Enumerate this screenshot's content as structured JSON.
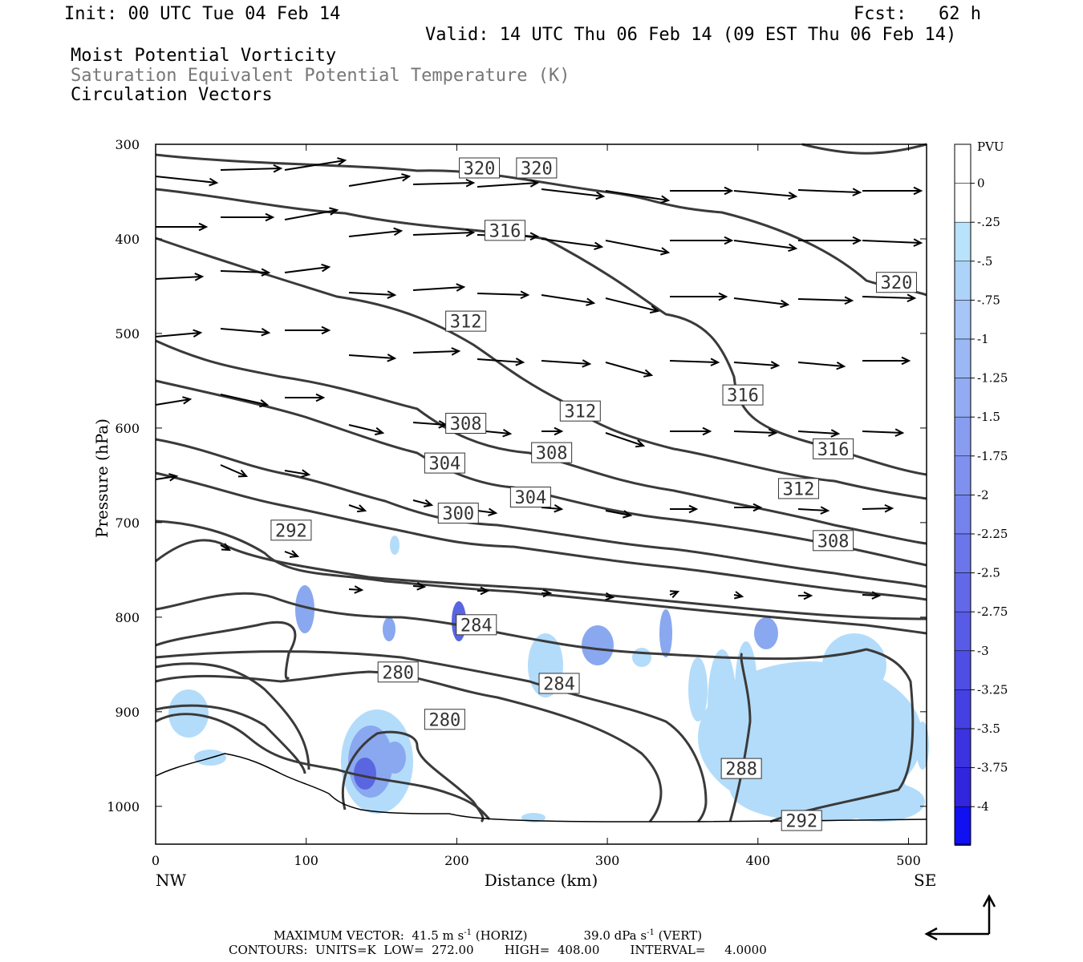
{
  "header": {
    "init": "Init: 00 UTC Tue 04 Feb 14",
    "fcst": "Fcst:   62 h",
    "valid": "Valid: 14 UTC Thu 06 Feb 14 (09 EST Thu 06 Feb 14)",
    "field1": "Moist Potential Vorticity",
    "field2": "Saturation Equivalent Potential Temperature (K)",
    "field3": "Circulation Vectors"
  },
  "footer": {
    "line1_a": "MAXIMUM VECTOR:  41.5 m s",
    "line1_a_sup": "-1",
    "line1_b": " (HORIZ)",
    "line1_c": "39.0 dPa s",
    "line1_c_sup": "-1",
    "line1_d": " (VERT)",
    "line2": "CONTOURS:  UNITS=K  LOW=  272.00        HIGH=  408.00        INTERVAL=     4.0000"
  },
  "colors": {
    "contour": "#3a3a3a",
    "frame": "#000000",
    "pv_light": "#b3dcfa",
    "pv_mid": "#8aa8f0",
    "pv_strong": "#5a66e0",
    "pv_max": "#1010f0"
  },
  "chart_data": {
    "type": "cross-section",
    "title": "",
    "xlabel": "Distance (km)",
    "ylabel": "Pressure (hPa)",
    "xlim": [
      0,
      512
    ],
    "ylim": [
      1040,
      300
    ],
    "x_ticks": [
      "0",
      "100",
      "200",
      "300",
      "400",
      "500"
    ],
    "y_ticks": [
      "300",
      "400",
      "500",
      "600",
      "700",
      "800",
      "900",
      "1000"
    ],
    "x_end_labels": {
      "left": "NW",
      "right": "SE"
    },
    "colorbar": {
      "unit": "PVU",
      "labels": [
        "0",
        "-.25",
        "-.5",
        "-.75",
        "-1",
        "-1.25",
        "-1.5",
        "-1.75",
        "-2",
        "-2.25",
        "-2.5",
        "-2.75",
        "-3",
        "-3.25",
        "-3.5",
        "-3.75",
        "-4"
      ],
      "colors": [
        "#ffffff",
        "#ffffff",
        "#b9e2fb",
        "#aed3f8",
        "#a5c6f6",
        "#9bb8f4",
        "#92abf2",
        "#889df0",
        "#7f90ee",
        "#7583ec",
        "#6b76ea",
        "#6268e8",
        "#585be6",
        "#4e4de4",
        "#4540e2",
        "#3b33e0",
        "#3225de",
        "#1010f0"
      ]
    },
    "contour_labels": [
      {
        "text": "320",
        "x": 215,
        "p": 325
      },
      {
        "text": "320",
        "x": 253,
        "p": 325
      },
      {
        "text": "316",
        "x": 232,
        "p": 391
      },
      {
        "text": "320",
        "x": 492,
        "p": 446
      },
      {
        "text": "312",
        "x": 206,
        "p": 487
      },
      {
        "text": "316",
        "x": 390,
        "p": 565
      },
      {
        "text": "312",
        "x": 282,
        "p": 582
      },
      {
        "text": "308",
        "x": 206,
        "p": 595
      },
      {
        "text": "316",
        "x": 450,
        "p": 622
      },
      {
        "text": "308",
        "x": 263,
        "p": 626
      },
      {
        "text": "304",
        "x": 192,
        "p": 637
      },
      {
        "text": "312",
        "x": 427,
        "p": 664
      },
      {
        "text": "304",
        "x": 249,
        "p": 673
      },
      {
        "text": "300",
        "x": 201,
        "p": 690
      },
      {
        "text": "308",
        "x": 450,
        "p": 719
      },
      {
        "text": "292",
        "x": 90,
        "p": 708
      },
      {
        "text": "284",
        "x": 213,
        "p": 808
      },
      {
        "text": "280",
        "x": 161,
        "p": 858
      },
      {
        "text": "284",
        "x": 268,
        "p": 870
      },
      {
        "text": "280",
        "x": 192,
        "p": 908
      },
      {
        "text": "288",
        "x": 389,
        "p": 960
      },
      {
        "text": "292",
        "x": 429,
        "p": 1015
      }
    ]
  }
}
